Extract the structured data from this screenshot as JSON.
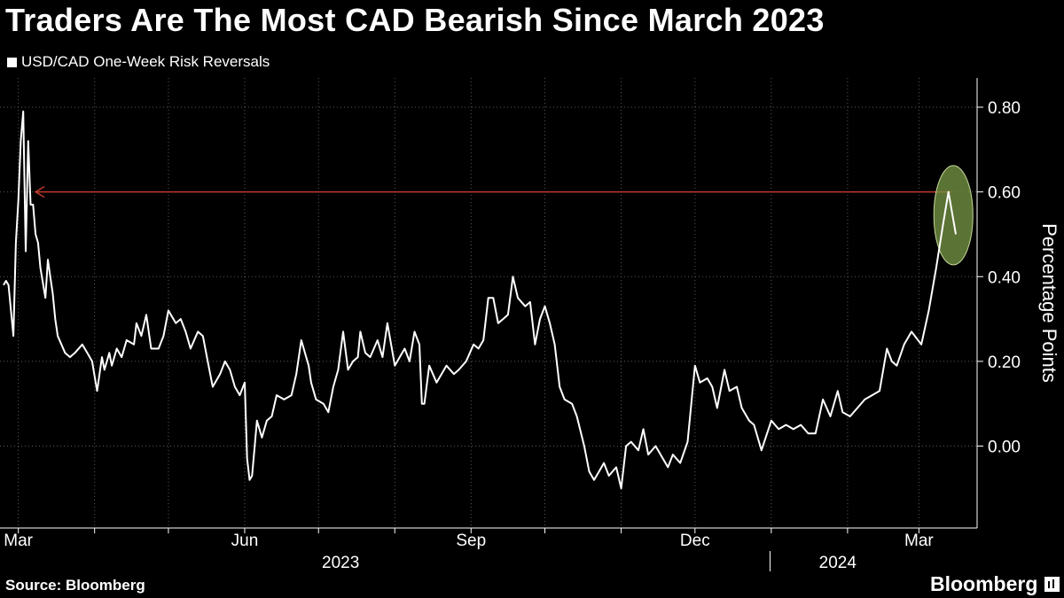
{
  "title": "Traders Are The Most CAD Bearish Since March 2023",
  "legend_label": "USD/CAD One-Week Risk Reversals",
  "source": "Source: Bloomberg",
  "brand": "Bloomberg",
  "colors": {
    "background": "#000000",
    "line": "#ffffff",
    "reference": "#c0392b",
    "highlight": "#7a9a46"
  },
  "chart_data": {
    "type": "line",
    "title": "Traders Are The Most CAD Bearish Since March 2023",
    "ylabel": "Percentage Points",
    "ylim": [
      -0.17,
      0.87
    ],
    "y_ticks": [
      "0.80",
      "0.60",
      "0.40",
      "0.20",
      "0.00"
    ],
    "y_tick_values": [
      0.8,
      0.6,
      0.4,
      0.2,
      0.0
    ],
    "x_tick_labels": [
      "Mar",
      "Jun",
      "Sep",
      "Dec",
      "Mar"
    ],
    "x_tick_dates": [
      "2023-03-01",
      "2023-06-01",
      "2023-09-01",
      "2023-12-01",
      "2024-03-01"
    ],
    "year_labels": [
      "2023",
      "2024"
    ],
    "grid": true,
    "annotations": [
      {
        "type": "horizontal-arrow",
        "y": 0.6,
        "from_date": "2024-03-14",
        "to_date": "2023-03-08"
      },
      {
        "type": "highlight-ellipse",
        "center_date": "2024-03-15",
        "center_y": 0.545
      }
    ],
    "series": [
      {
        "values": [
          [
            "2023-02-23",
            0.38
          ],
          [
            "2023-02-24",
            0.39
          ],
          [
            "2023-02-25",
            0.38
          ],
          [
            "2023-02-27",
            0.26
          ],
          [
            "2023-02-28",
            0.48
          ],
          [
            "2023-03-01",
            0.58
          ],
          [
            "2023-03-02",
            0.72
          ],
          [
            "2023-03-03",
            0.79
          ],
          [
            "2023-03-04",
            0.46
          ],
          [
            "2023-03-05",
            0.72
          ],
          [
            "2023-03-06",
            0.57
          ],
          [
            "2023-03-07",
            0.57
          ],
          [
            "2023-03-08",
            0.5
          ],
          [
            "2023-03-09",
            0.48
          ],
          [
            "2023-03-10",
            0.42
          ],
          [
            "2023-03-12",
            0.35
          ],
          [
            "2023-03-13",
            0.44
          ],
          [
            "2023-03-14",
            0.4
          ],
          [
            "2023-03-15",
            0.36
          ],
          [
            "2023-03-16",
            0.3
          ],
          [
            "2023-03-17",
            0.26
          ],
          [
            "2023-03-20",
            0.22
          ],
          [
            "2023-03-22",
            0.21
          ],
          [
            "2023-03-24",
            0.22
          ],
          [
            "2023-03-27",
            0.24
          ],
          [
            "2023-03-29",
            0.22
          ],
          [
            "2023-03-31",
            0.2
          ],
          [
            "2023-04-02",
            0.13
          ],
          [
            "2023-04-04",
            0.21
          ],
          [
            "2023-04-05",
            0.18
          ],
          [
            "2023-04-07",
            0.22
          ],
          [
            "2023-04-08",
            0.19
          ],
          [
            "2023-04-10",
            0.23
          ],
          [
            "2023-04-12",
            0.21
          ],
          [
            "2023-04-14",
            0.25
          ],
          [
            "2023-04-17",
            0.24
          ],
          [
            "2023-04-18",
            0.29
          ],
          [
            "2023-04-20",
            0.26
          ],
          [
            "2023-04-22",
            0.31
          ],
          [
            "2023-04-24",
            0.23
          ],
          [
            "2023-04-27",
            0.23
          ],
          [
            "2023-04-29",
            0.26
          ],
          [
            "2023-05-01",
            0.32
          ],
          [
            "2023-05-04",
            0.29
          ],
          [
            "2023-05-06",
            0.3
          ],
          [
            "2023-05-08",
            0.27
          ],
          [
            "2023-05-10",
            0.23
          ],
          [
            "2023-05-13",
            0.27
          ],
          [
            "2023-05-15",
            0.26
          ],
          [
            "2023-05-17",
            0.2
          ],
          [
            "2023-05-19",
            0.14
          ],
          [
            "2023-05-22",
            0.17
          ],
          [
            "2023-05-24",
            0.2
          ],
          [
            "2023-05-26",
            0.18
          ],
          [
            "2023-05-28",
            0.14
          ],
          [
            "2023-05-30",
            0.12
          ],
          [
            "2023-06-01",
            0.15
          ],
          [
            "2023-06-02",
            -0.03
          ],
          [
            "2023-06-03",
            -0.08
          ],
          [
            "2023-06-04",
            -0.07
          ],
          [
            "2023-06-06",
            0.06
          ],
          [
            "2023-06-08",
            0.02
          ],
          [
            "2023-06-10",
            0.06
          ],
          [
            "2023-06-12",
            0.07
          ],
          [
            "2023-06-14",
            0.12
          ],
          [
            "2023-06-17",
            0.11
          ],
          [
            "2023-06-20",
            0.12
          ],
          [
            "2023-06-22",
            0.17
          ],
          [
            "2023-06-24",
            0.25
          ],
          [
            "2023-06-27",
            0.19
          ],
          [
            "2023-06-28",
            0.15
          ],
          [
            "2023-06-30",
            0.11
          ],
          [
            "2023-07-03",
            0.1
          ],
          [
            "2023-07-05",
            0.08
          ],
          [
            "2023-07-07",
            0.14
          ],
          [
            "2023-07-09",
            0.18
          ],
          [
            "2023-07-11",
            0.27
          ],
          [
            "2023-07-13",
            0.18
          ],
          [
            "2023-07-15",
            0.2
          ],
          [
            "2023-07-17",
            0.21
          ],
          [
            "2023-07-18",
            0.27
          ],
          [
            "2023-07-20",
            0.22
          ],
          [
            "2023-07-22",
            0.21
          ],
          [
            "2023-07-25",
            0.25
          ],
          [
            "2023-07-27",
            0.21
          ],
          [
            "2023-07-29",
            0.29
          ],
          [
            "2023-08-01",
            0.19
          ],
          [
            "2023-08-03",
            0.21
          ],
          [
            "2023-08-05",
            0.23
          ],
          [
            "2023-08-07",
            0.2
          ],
          [
            "2023-08-09",
            0.27
          ],
          [
            "2023-08-11",
            0.24
          ],
          [
            "2023-08-12",
            0.1
          ],
          [
            "2023-08-13",
            0.1
          ],
          [
            "2023-08-15",
            0.19
          ],
          [
            "2023-08-18",
            0.15
          ],
          [
            "2023-08-20",
            0.17
          ],
          [
            "2023-08-22",
            0.19
          ],
          [
            "2023-08-25",
            0.17
          ],
          [
            "2023-08-27",
            0.18
          ],
          [
            "2023-08-30",
            0.2
          ],
          [
            "2023-09-02",
            0.24
          ],
          [
            "2023-09-04",
            0.23
          ],
          [
            "2023-09-06",
            0.25
          ],
          [
            "2023-09-08",
            0.35
          ],
          [
            "2023-09-10",
            0.35
          ],
          [
            "2023-09-12",
            0.29
          ],
          [
            "2023-09-14",
            0.3
          ],
          [
            "2023-09-16",
            0.31
          ],
          [
            "2023-09-18",
            0.4
          ],
          [
            "2023-09-20",
            0.35
          ],
          [
            "2023-09-23",
            0.33
          ],
          [
            "2023-09-25",
            0.34
          ],
          [
            "2023-09-27",
            0.24
          ],
          [
            "2023-09-29",
            0.3
          ],
          [
            "2023-10-01",
            0.33
          ],
          [
            "2023-10-03",
            0.29
          ],
          [
            "2023-10-05",
            0.24
          ],
          [
            "2023-10-07",
            0.14
          ],
          [
            "2023-10-09",
            0.11
          ],
          [
            "2023-10-12",
            0.1
          ],
          [
            "2023-10-14",
            0.07
          ],
          [
            "2023-10-17",
            0.0
          ],
          [
            "2023-10-19",
            -0.06
          ],
          [
            "2023-10-21",
            -0.08
          ],
          [
            "2023-10-23",
            -0.06
          ],
          [
            "2023-10-25",
            -0.04
          ],
          [
            "2023-10-27",
            -0.07
          ],
          [
            "2023-10-30",
            -0.05
          ],
          [
            "2023-11-01",
            -0.1
          ],
          [
            "2023-11-03",
            0.0
          ],
          [
            "2023-11-05",
            0.01
          ],
          [
            "2023-11-08",
            -0.01
          ],
          [
            "2023-11-10",
            0.04
          ],
          [
            "2023-11-12",
            -0.02
          ],
          [
            "2023-11-15",
            0.0
          ],
          [
            "2023-11-17",
            -0.02
          ],
          [
            "2023-11-20",
            -0.05
          ],
          [
            "2023-11-22",
            -0.02
          ],
          [
            "2023-11-25",
            -0.04
          ],
          [
            "2023-11-28",
            0.01
          ],
          [
            "2023-12-01",
            0.19
          ],
          [
            "2023-12-03",
            0.15
          ],
          [
            "2023-12-06",
            0.16
          ],
          [
            "2023-12-08",
            0.14
          ],
          [
            "2023-12-10",
            0.09
          ],
          [
            "2023-12-13",
            0.18
          ],
          [
            "2023-12-15",
            0.13
          ],
          [
            "2023-12-18",
            0.14
          ],
          [
            "2023-12-20",
            0.09
          ],
          [
            "2023-12-23",
            0.06
          ],
          [
            "2023-12-25",
            0.05
          ],
          [
            "2023-12-28",
            -0.01
          ],
          [
            "2024-01-01",
            0.06
          ],
          [
            "2024-01-04",
            0.04
          ],
          [
            "2024-01-07",
            0.05
          ],
          [
            "2024-01-10",
            0.04
          ],
          [
            "2024-01-13",
            0.05
          ],
          [
            "2024-01-16",
            0.03
          ],
          [
            "2024-01-19",
            0.03
          ],
          [
            "2024-01-22",
            0.11
          ],
          [
            "2024-01-25",
            0.07
          ],
          [
            "2024-01-28",
            0.13
          ],
          [
            "2024-01-30",
            0.08
          ],
          [
            "2024-02-02",
            0.07
          ],
          [
            "2024-02-05",
            0.09
          ],
          [
            "2024-02-08",
            0.11
          ],
          [
            "2024-02-11",
            0.12
          ],
          [
            "2024-02-14",
            0.13
          ],
          [
            "2024-02-17",
            0.23
          ],
          [
            "2024-02-19",
            0.2
          ],
          [
            "2024-02-21",
            0.19
          ],
          [
            "2024-02-24",
            0.24
          ],
          [
            "2024-02-27",
            0.27
          ],
          [
            "2024-03-02",
            0.24
          ],
          [
            "2024-03-05",
            0.32
          ],
          [
            "2024-03-08",
            0.42
          ],
          [
            "2024-03-11",
            0.53
          ],
          [
            "2024-03-13",
            0.6
          ],
          [
            "2024-03-16",
            0.5
          ]
        ]
      }
    ]
  }
}
